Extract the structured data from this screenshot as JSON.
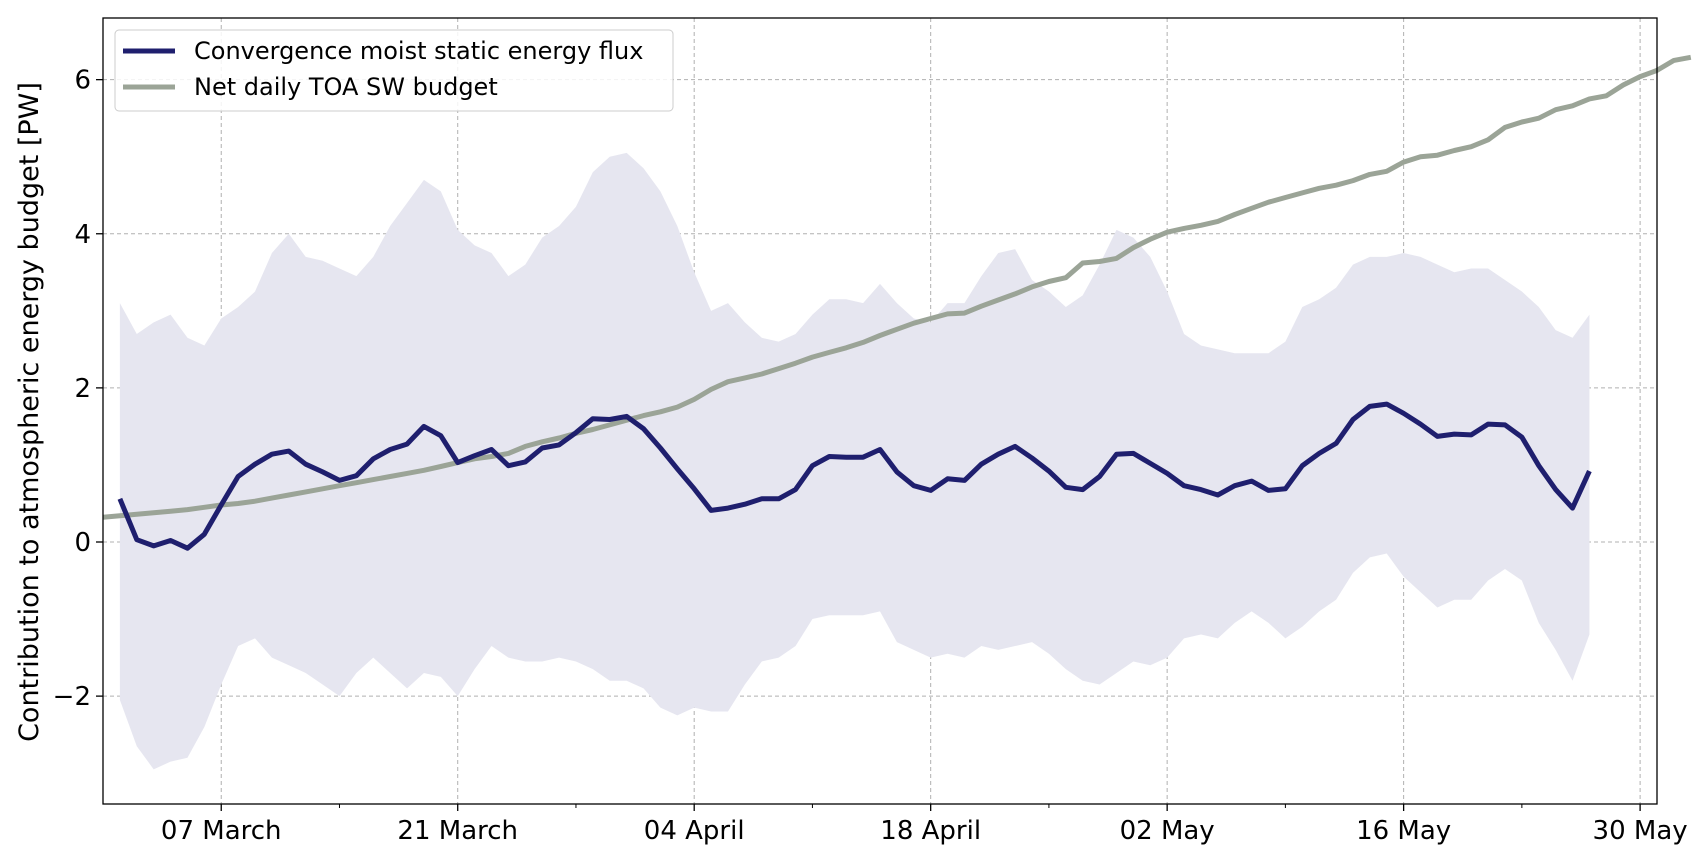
{
  "chart_data": {
    "type": "line",
    "title": "",
    "xlabel": "",
    "ylabel": "Contribution to atmospheric energy budget [PW]",
    "ylim": [
      -3.4,
      6.8
    ],
    "xlim": [
      "2021-02-28",
      "2021-05-31"
    ],
    "grid": true,
    "legend_position": "top-left",
    "x_ticks": [
      {
        "date": "2021-03-07",
        "label": "07 March"
      },
      {
        "date": "2021-03-21",
        "label": "21 March"
      },
      {
        "date": "2021-04-04",
        "label": "04 April"
      },
      {
        "date": "2021-04-18",
        "label": "18 April"
      },
      {
        "date": "2021-05-02",
        "label": "02 May"
      },
      {
        "date": "2021-05-16",
        "label": "16 May"
      },
      {
        "date": "2021-05-30",
        "label": "30 May"
      }
    ],
    "y_ticks": [
      {
        "value": -2,
        "label": "−2"
      },
      {
        "value": 0,
        "label": "0"
      },
      {
        "value": 2,
        "label": "2"
      },
      {
        "value": 4,
        "label": "4"
      },
      {
        "value": 6,
        "label": "6"
      }
    ],
    "minor_x_ticks": [
      "2021-03-14",
      "2021-03-28",
      "2021-04-11",
      "2021-04-25",
      "2021-05-09",
      "2021-05-23"
    ],
    "series": [
      {
        "name": "Convergence moist static energy flux",
        "color": "#1f1f6e",
        "start_date": "2021-03-01",
        "step_days": 1,
        "values": [
          0.56,
          0.03,
          -0.05,
          0.02,
          -0.08,
          0.1,
          0.48,
          0.85,
          1.01,
          1.14,
          1.18,
          1.01,
          0.91,
          0.8,
          0.86,
          1.08,
          1.2,
          1.27,
          1.5,
          1.38,
          1.03,
          1.12,
          1.2,
          0.99,
          1.04,
          1.22,
          1.26,
          1.42,
          1.6,
          1.59,
          1.63,
          1.47,
          1.22,
          0.95,
          0.69,
          0.41,
          0.44,
          0.49,
          0.56,
          0.56,
          0.68,
          0.99,
          1.11,
          1.1,
          1.1,
          1.2,
          0.91,
          0.73,
          0.67,
          0.82,
          0.8,
          1.01,
          1.14,
          1.24,
          1.09,
          0.92,
          0.71,
          0.68,
          0.85,
          1.14,
          1.15,
          1.02,
          0.89,
          0.73,
          0.68,
          0.61,
          0.73,
          0.79,
          0.67,
          0.69,
          0.99,
          1.15,
          1.28,
          1.59,
          1.76,
          1.79,
          1.67,
          1.53,
          1.37,
          1.4,
          1.39,
          1.53,
          1.52,
          1.36,
          0.99,
          0.68,
          0.44,
          0.92
        ]
      },
      {
        "name": "Net daily TOA SW budget",
        "color": "#9ba497",
        "start_date": "2021-02-28",
        "step_days": 1,
        "values": [
          0.32,
          0.34,
          0.36,
          0.38,
          0.4,
          0.42,
          0.45,
          0.48,
          0.5,
          0.53,
          0.57,
          0.61,
          0.65,
          0.69,
          0.73,
          0.77,
          0.81,
          0.85,
          0.89,
          0.93,
          0.98,
          1.03,
          1.08,
          1.11,
          1.15,
          1.24,
          1.3,
          1.35,
          1.41,
          1.46,
          1.52,
          1.58,
          1.64,
          1.69,
          1.75,
          1.85,
          1.98,
          2.08,
          2.13,
          2.18,
          2.25,
          2.32,
          2.4,
          2.46,
          2.52,
          2.59,
          2.68,
          2.76,
          2.84,
          2.9,
          2.96,
          2.97,
          3.06,
          3.14,
          3.22,
          3.31,
          3.38,
          3.43,
          3.62,
          3.64,
          3.68,
          3.82,
          3.93,
          4.02,
          4.07,
          4.11,
          4.16,
          4.25,
          4.33,
          4.41,
          4.47,
          4.53,
          4.59,
          4.63,
          4.69,
          4.77,
          4.81,
          4.93,
          5.0,
          5.02,
          5.08,
          5.13,
          5.22,
          5.38,
          5.45,
          5.5,
          5.61,
          5.66,
          5.75,
          5.79,
          5.93,
          6.04,
          6.12,
          6.25,
          6.29
        ]
      }
    ],
    "shaded_band": {
      "color": "#e6e6f0",
      "start_date": "2021-03-01",
      "step_days": 1,
      "upper": [
        3.1,
        2.7,
        2.85,
        2.95,
        2.65,
        2.55,
        2.9,
        3.05,
        3.25,
        3.75,
        4.0,
        3.7,
        3.65,
        3.55,
        3.45,
        3.7,
        4.1,
        4.4,
        4.7,
        4.55,
        4.05,
        3.85,
        3.75,
        3.45,
        3.6,
        3.95,
        4.1,
        4.35,
        4.8,
        5.0,
        5.05,
        4.85,
        4.55,
        4.1,
        3.5,
        3.0,
        3.1,
        2.85,
        2.65,
        2.6,
        2.7,
        2.95,
        3.15,
        3.15,
        3.1,
        3.35,
        3.1,
        2.9,
        2.85,
        3.1,
        3.1,
        3.45,
        3.75,
        3.8,
        3.4,
        3.25,
        3.05,
        3.2,
        3.6,
        4.05,
        3.95,
        3.7,
        3.25,
        2.7,
        2.55,
        2.5,
        2.45,
        2.45,
        2.45,
        2.6,
        3.05,
        3.15,
        3.3,
        3.6,
        3.7,
        3.7,
        3.75,
        3.7,
        3.6,
        3.5,
        3.55,
        3.55,
        3.4,
        3.25,
        3.05,
        2.75,
        2.65,
        2.95
      ],
      "lower": [
        -2.05,
        -2.65,
        -2.95,
        -2.85,
        -2.8,
        -2.4,
        -1.85,
        -1.35,
        -1.25,
        -1.5,
        -1.6,
        -1.7,
        -1.85,
        -2.0,
        -1.7,
        -1.5,
        -1.7,
        -1.9,
        -1.7,
        -1.75,
        -2.0,
        -1.65,
        -1.35,
        -1.5,
        -1.55,
        -1.55,
        -1.5,
        -1.55,
        -1.65,
        -1.8,
        -1.8,
        -1.9,
        -2.15,
        -2.25,
        -2.15,
        -2.2,
        -2.2,
        -1.85,
        -1.55,
        -1.5,
        -1.35,
        -1.0,
        -0.95,
        -0.95,
        -0.95,
        -0.9,
        -1.3,
        -1.4,
        -1.5,
        -1.45,
        -1.5,
        -1.35,
        -1.4,
        -1.35,
        -1.3,
        -1.45,
        -1.65,
        -1.8,
        -1.85,
        -1.7,
        -1.55,
        -1.6,
        -1.5,
        -1.25,
        -1.2,
        -1.25,
        -1.05,
        -0.9,
        -1.05,
        -1.25,
        -1.1,
        -0.9,
        -0.75,
        -0.4,
        -0.2,
        -0.15,
        -0.45,
        -0.65,
        -0.85,
        -0.75,
        -0.75,
        -0.5,
        -0.35,
        -0.5,
        -1.05,
        -1.4,
        -1.8,
        -1.2
      ]
    }
  }
}
